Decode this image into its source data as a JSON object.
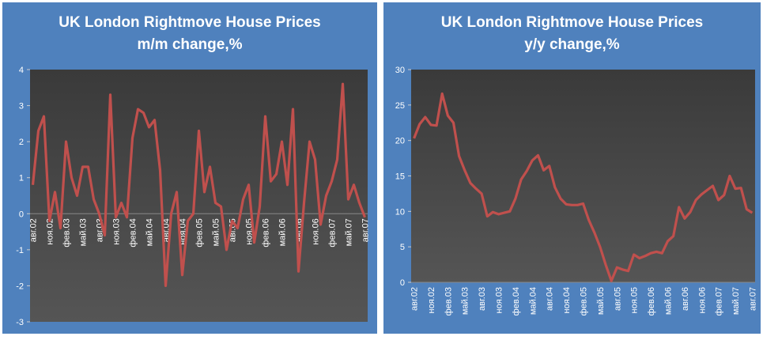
{
  "chart_data": [
    {
      "type": "line",
      "title": "UK London Rightmove House Prices",
      "subtitle": "m/m change,%",
      "categories": [
        "авг.02",
        null,
        null,
        "ноя.02",
        null,
        null,
        "фев.03",
        null,
        null,
        "май.03",
        null,
        null,
        "авг.03",
        null,
        null,
        "ноя.03",
        null,
        null,
        "фев.04",
        null,
        null,
        "май.04",
        null,
        null,
        "авг.04",
        null,
        null,
        "ноя.04",
        null,
        null,
        "фев.05",
        null,
        null,
        "май.05",
        null,
        null,
        "авг.05",
        null,
        null,
        "ноя.05",
        null,
        null,
        "фев.06",
        null,
        null,
        "май.06",
        null,
        null,
        "авг.06",
        null,
        null,
        "ноя.06",
        null,
        null,
        "фев.07",
        null,
        null,
        "май.07",
        null,
        null,
        "авг.07"
      ],
      "values": [
        0.8,
        2.3,
        2.7,
        -0.2,
        0.6,
        -0.4,
        2.0,
        1.0,
        0.5,
        1.3,
        1.3,
        0.4,
        0.0,
        -0.6,
        3.3,
        -0.1,
        0.3,
        -0.1,
        2.1,
        2.9,
        2.8,
        2.4,
        2.6,
        1.2,
        -2.0,
        0.0,
        0.6,
        -1.7,
        -0.2,
        0.0,
        2.3,
        0.6,
        1.3,
        0.3,
        0.2,
        -1.0,
        -0.2,
        -0.4,
        0.4,
        0.8,
        -0.8,
        0.2,
        2.7,
        0.9,
        1.1,
        2.0,
        0.8,
        2.9,
        -1.6,
        0.3,
        2.0,
        1.5,
        -0.3,
        0.5,
        0.9,
        1.5,
        3.6,
        0.4,
        0.8,
        0.3,
        -0.1
      ],
      "color": "#c0504d",
      "ylim": [
        -3,
        4
      ],
      "yticks": [
        -3,
        -2,
        -1,
        0,
        1,
        2,
        3,
        4
      ]
    },
    {
      "type": "line",
      "title": "UK London Rightmove House Prices",
      "subtitle": "y/y change,%",
      "categories": [
        "авг.02",
        null,
        null,
        "ноя.02",
        null,
        null,
        "фев.03",
        null,
        null,
        "май.03",
        null,
        null,
        "авг.03",
        null,
        null,
        "ноя.03",
        null,
        null,
        "фев.04",
        null,
        null,
        "май.04",
        null,
        null,
        "авг.04",
        null,
        null,
        "ноя.04",
        null,
        null,
        "фев.05",
        null,
        null,
        "май.05",
        null,
        null,
        "авг.05",
        null,
        null,
        "ноя.05",
        null,
        null,
        "фев.06",
        null,
        null,
        "май.06",
        null,
        null,
        "авг.06",
        null,
        null,
        "ноя.06",
        null,
        null,
        "фев.07",
        null,
        null,
        "май.07",
        null,
        null,
        "авг.07"
      ],
      "values": [
        20.3,
        22.3,
        23.3,
        22.2,
        22.1,
        26.6,
        23.5,
        22.5,
        17.8,
        15.8,
        14.0,
        13.2,
        12.5,
        9.3,
        9.9,
        9.6,
        9.8,
        10.0,
        11.8,
        14.5,
        15.7,
        17.2,
        17.9,
        15.8,
        16.4,
        13.4,
        11.8,
        11.0,
        10.9,
        10.9,
        11.1,
        8.8,
        7.0,
        5.0,
        2.5,
        0.2,
        2.1,
        1.8,
        1.6,
        3.9,
        3.4,
        3.7,
        4.1,
        4.3,
        4.1,
        5.8,
        6.5,
        10.6,
        9.0,
        9.9,
        11.6,
        12.4,
        13.0,
        13.6,
        11.6,
        12.3,
        15.0,
        13.2,
        13.3,
        10.3,
        9.8
      ],
      "color": "#c0504d",
      "ylim": [
        0,
        30
      ],
      "yticks": [
        0,
        5,
        10,
        15,
        20,
        25,
        30
      ]
    }
  ]
}
